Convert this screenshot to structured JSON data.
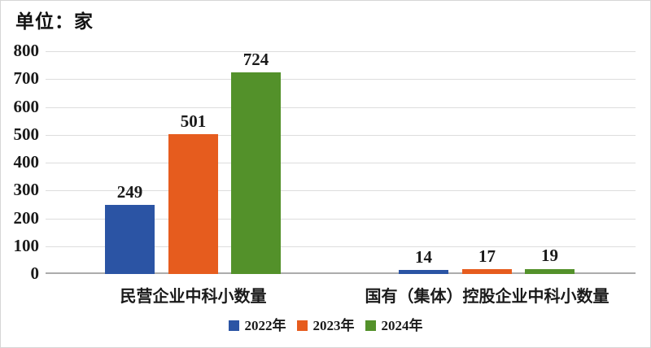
{
  "chart_data": {
    "type": "bar",
    "title": "单位：家",
    "categories": [
      "民营企业中科小数量",
      "国有（集体）控股企业中科小数量"
    ],
    "series": [
      {
        "name": "2022年",
        "color": "#2b54a4",
        "values": [
          249,
          14
        ]
      },
      {
        "name": "2023年",
        "color": "#e65c1e",
        "values": [
          501,
          17
        ]
      },
      {
        "name": "2024年",
        "color": "#53912a",
        "values": [
          724,
          19
        ]
      }
    ],
    "ylim": [
      0,
      800
    ],
    "ytick_step": 100,
    "grid": true,
    "legend_position": "bottom",
    "colors": {
      "gridline": "#dddddd",
      "axis_line": "#acacac",
      "text": "#1a1a1a"
    }
  }
}
